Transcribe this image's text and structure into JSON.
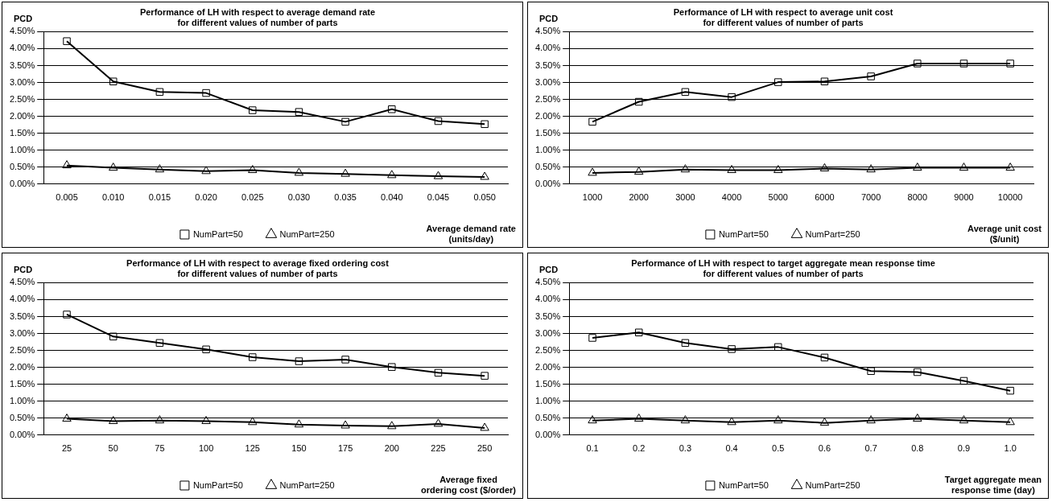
{
  "chart_data": [
    {
      "type": "line",
      "title": "Performance of LH with respect to average demand rate\nfor different values of number of parts",
      "ylabel": "PCD",
      "xlabel": "Average demand rate\n(units/day)",
      "categories": [
        "0.005",
        "0.010",
        "0.015",
        "0.020",
        "0.025",
        "0.030",
        "0.035",
        "0.040",
        "0.045",
        "0.050"
      ],
      "series": [
        {
          "name": "NumPart=50",
          "color": "#000000",
          "marker": "square",
          "values": [
            4.22,
            3.03,
            2.72,
            2.69,
            2.18,
            2.13,
            1.84,
            2.21,
            1.86,
            1.77
          ]
        },
        {
          "name": "NumPart=250",
          "color": "#000000",
          "marker": "triangle",
          "values": [
            0.55,
            0.48,
            0.43,
            0.38,
            0.41,
            0.33,
            0.3,
            0.26,
            0.23,
            0.21
          ]
        }
      ],
      "ylim": [
        0,
        4.5
      ],
      "yticks": [
        {
          "value": 0,
          "label": "0.00%"
        },
        {
          "value": 0.5,
          "label": "0.50%"
        },
        {
          "value": 1,
          "label": "1.00%"
        },
        {
          "value": 1.5,
          "label": "1.50%"
        },
        {
          "value": 2,
          "label": "2.00%"
        },
        {
          "value": 2.5,
          "label": "2.50%"
        },
        {
          "value": 3,
          "label": "3.00%"
        },
        {
          "value": 3.5,
          "label": "3.50%"
        },
        {
          "value": 4,
          "label": "4.00%"
        },
        {
          "value": 4.5,
          "label": "4.50%"
        }
      ],
      "grid": "y",
      "legend": "bottom",
      "line_style": "solid"
    },
    {
      "type": "line",
      "title": "Performance of LH with respect to average unit cost\nfor different values of number of parts",
      "ylabel": "PCD",
      "xlabel": "Average unit cost\n($/unit)",
      "categories": [
        "1000",
        "2000",
        "3000",
        "4000",
        "5000",
        "6000",
        "7000",
        "8000",
        "9000",
        "10000"
      ],
      "series": [
        {
          "name": "NumPart=50",
          "color": "#000000",
          "marker": "square",
          "values": [
            1.84,
            2.43,
            2.72,
            2.57,
            3.01,
            3.03,
            3.18,
            3.56,
            3.56,
            3.56
          ]
        },
        {
          "name": "NumPart=250",
          "color": "#000000",
          "marker": "triangle",
          "values": [
            0.33,
            0.36,
            0.43,
            0.41,
            0.41,
            0.46,
            0.43,
            0.48,
            0.48,
            0.48
          ]
        }
      ],
      "ylim": [
        0,
        4.5
      ],
      "yticks": [
        {
          "value": 0,
          "label": "0.00%"
        },
        {
          "value": 0.5,
          "label": "0.50%"
        },
        {
          "value": 1,
          "label": "1.00%"
        },
        {
          "value": 1.5,
          "label": "1.50%"
        },
        {
          "value": 2,
          "label": "2.00%"
        },
        {
          "value": 2.5,
          "label": "2.50%"
        },
        {
          "value": 3,
          "label": "3.00%"
        },
        {
          "value": 3.5,
          "label": "3.50%"
        },
        {
          "value": 4,
          "label": "4.00%"
        },
        {
          "value": 4.5,
          "label": "4.50%"
        }
      ],
      "grid": "y",
      "legend": "bottom",
      "line_style": "solid"
    },
    {
      "type": "line",
      "title": "Performance of LH with respect to average fixed ordering cost\nfor different values of number of parts",
      "ylabel": "PCD",
      "xlabel": "Average fixed\nordering cost ($/order)",
      "categories": [
        "25",
        "50",
        "75",
        "100",
        "125",
        "150",
        "175",
        "200",
        "225",
        "250"
      ],
      "series": [
        {
          "name": "NumPart=50",
          "color": "#000000",
          "marker": "square",
          "values": [
            3.56,
            2.91,
            2.72,
            2.53,
            2.3,
            2.18,
            2.23,
            2.01,
            1.84,
            1.75
          ]
        },
        {
          "name": "NumPart=250",
          "color": "#000000",
          "marker": "triangle",
          "values": [
            0.48,
            0.41,
            0.43,
            0.41,
            0.38,
            0.31,
            0.28,
            0.26,
            0.33,
            0.21
          ]
        }
      ],
      "ylim": [
        0,
        4.5
      ],
      "yticks": [
        {
          "value": 0,
          "label": "0.00%"
        },
        {
          "value": 0.5,
          "label": "0.50%"
        },
        {
          "value": 1,
          "label": "1.00%"
        },
        {
          "value": 1.5,
          "label": "1.50%"
        },
        {
          "value": 2,
          "label": "2.00%"
        },
        {
          "value": 2.5,
          "label": "2.50%"
        },
        {
          "value": 3,
          "label": "3.00%"
        },
        {
          "value": 3.5,
          "label": "3.50%"
        },
        {
          "value": 4,
          "label": "4.00%"
        },
        {
          "value": 4.5,
          "label": "4.50%"
        }
      ],
      "grid": "y",
      "legend": "bottom",
      "line_style": "solid"
    },
    {
      "type": "line",
      "title": "Performance of LH with respect to target aggregate mean response time\nfor different values of number of parts",
      "ylabel": "PCD",
      "xlabel": "Target aggregate mean\nresponse time (day)",
      "categories": [
        "0.1",
        "0.2",
        "0.3",
        "0.4",
        "0.5",
        "0.6",
        "0.7",
        "0.8",
        "0.9",
        "1.0"
      ],
      "series": [
        {
          "name": "NumPart=50",
          "color": "#000000",
          "marker": "square",
          "values": [
            2.87,
            3.03,
            2.72,
            2.54,
            2.6,
            2.29,
            1.89,
            1.86,
            1.6,
            1.31
          ]
        },
        {
          "name": "NumPart=250",
          "color": "#000000",
          "marker": "triangle",
          "values": [
            0.43,
            0.48,
            0.43,
            0.38,
            0.43,
            0.36,
            0.43,
            0.48,
            0.43,
            0.38
          ]
        }
      ],
      "ylim": [
        0,
        4.5
      ],
      "yticks": [
        {
          "value": 0,
          "label": "0.00%"
        },
        {
          "value": 0.5,
          "label": "0.50%"
        },
        {
          "value": 1,
          "label": "1.00%"
        },
        {
          "value": 1.5,
          "label": "1.50%"
        },
        {
          "value": 2,
          "label": "2.00%"
        },
        {
          "value": 2.5,
          "label": "2.50%"
        },
        {
          "value": 3,
          "label": "3.00%"
        },
        {
          "value": 3.5,
          "label": "3.50%"
        },
        {
          "value": 4,
          "label": "4.00%"
        },
        {
          "value": 4.5,
          "label": "4.50%"
        }
      ],
      "grid": "y",
      "legend": "bottom",
      "line_style": "solid"
    }
  ]
}
